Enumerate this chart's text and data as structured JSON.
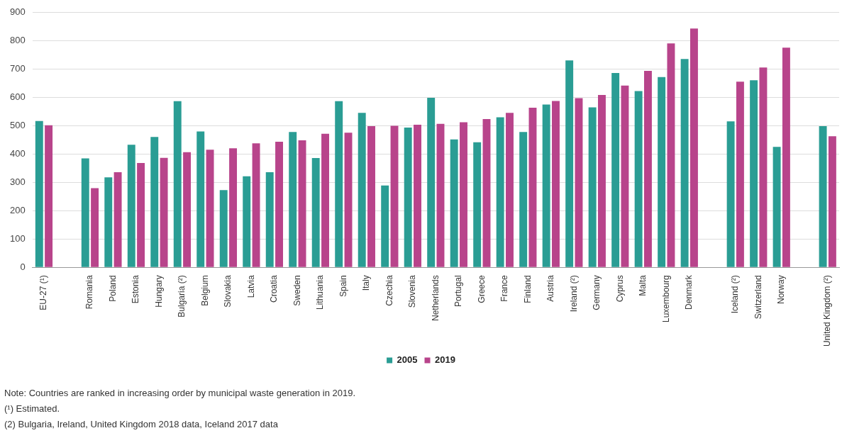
{
  "chart_data": {
    "type": "bar",
    "categories": [
      "EU-27 (¹)",
      null,
      "Romania",
      "Poland",
      "Estonia",
      "Hungary",
      "Bulgaria (²)",
      "Belgium",
      "Slovakia",
      "Latvia",
      "Croatia",
      "Sweden",
      "Lithuania",
      "Spain",
      "Italy",
      "Czechia",
      "Slovenia",
      "Netherlands",
      "Portugal",
      "Greece",
      "France",
      "Finland",
      "Austria",
      "Ireland (²)",
      "Germany",
      "Cyprus",
      "Malta",
      "Luxembourg",
      "Denmark",
      null,
      "Iceland (²)",
      "Switzerland",
      "Norway",
      null,
      "United Kingdom (²)"
    ],
    "series": [
      {
        "name": "2005",
        "color": "#2a9d94",
        "values": [
          517,
          null,
          385,
          318,
          433,
          461,
          587,
          480,
          273,
          322,
          336,
          478,
          386,
          587,
          546,
          289,
          494,
          599,
          452,
          442,
          530,
          478,
          575,
          731,
          565,
          687,
          623,
          672,
          736,
          null,
          516,
          661,
          426,
          null,
          499
        ]
      },
      {
        "name": "2019",
        "color": "#b8448b",
        "values": [
          502,
          null,
          280,
          336,
          369,
          387,
          407,
          416,
          421,
          438,
          444,
          449,
          472,
          476,
          499,
          500,
          504,
          507,
          513,
          524,
          546,
          564,
          588,
          598,
          609,
          642,
          694,
          791,
          844,
          null,
          656,
          706,
          776,
          null,
          463
        ]
      }
    ],
    "ylim": [
      0,
      900
    ],
    "yticks": [
      0,
      100,
      200,
      300,
      400,
      500,
      600,
      700,
      800,
      900
    ],
    "grid": "y",
    "legend": "bottom",
    "annotations": [
      "Note: Countries are ranked in increasing order by municipal waste generation in 2019.",
      "(¹) Estimated.",
      "(2) Bulgaria, Ireland, United Kingdom 2018 data, Iceland 2017 data"
    ]
  }
}
